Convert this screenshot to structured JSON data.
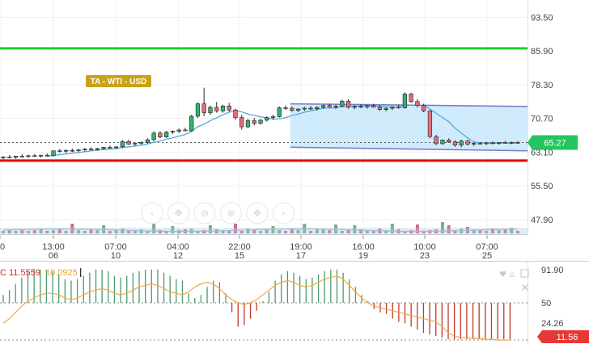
{
  "chart_data": [
    {
      "type": "candlestick",
      "y_ticks": [
        "93.50",
        "85.90",
        "78.30",
        "70.70",
        "63.10",
        "55.50",
        "47.90"
      ],
      "x_ticks": [
        {
          "time": "0",
          "date": ""
        },
        {
          "time": "13:00",
          "date": "06"
        },
        {
          "time": "07:00",
          "date": "10"
        },
        {
          "time": "04:00",
          "date": "12"
        },
        {
          "time": "22:00",
          "date": "15"
        },
        {
          "time": "19:00",
          "date": "17"
        },
        {
          "time": "16:00",
          "date": "19"
        },
        {
          "time": "10:00",
          "date": "23"
        },
        {
          "time": "07:00",
          "date": "25"
        }
      ],
      "ylim": [
        44.6,
        97.4
      ],
      "resistance_level": 86.5,
      "support_level": 61.2,
      "current_price": 65.27,
      "current_price_label": "65.27",
      "grid": true,
      "instrument_badge": "TA - WTI - USD",
      "candles": [
        [
          61.8,
          62.2,
          61.5,
          62.0
        ],
        [
          62.0,
          62.4,
          61.7,
          61.9
        ],
        [
          61.9,
          62.3,
          61.6,
          62.2
        ],
        [
          62.2,
          62.6,
          61.9,
          62.1
        ],
        [
          62.1,
          62.5,
          61.8,
          62.3
        ],
        [
          62.3,
          62.7,
          62.0,
          62.2
        ],
        [
          62.2,
          62.5,
          61.9,
          62.4
        ],
        [
          62.4,
          62.8,
          62.1,
          62.3
        ],
        [
          62.3,
          63.5,
          62.1,
          63.4
        ],
        [
          63.4,
          63.8,
          63.0,
          63.3
        ],
        [
          63.3,
          63.7,
          62.9,
          63.5
        ],
        [
          63.5,
          63.9,
          63.1,
          63.4
        ],
        [
          63.4,
          63.8,
          63.1,
          63.6
        ],
        [
          63.6,
          64.0,
          63.3,
          63.8
        ],
        [
          63.8,
          64.2,
          63.5,
          63.7
        ],
        [
          63.7,
          64.1,
          63.4,
          63.9
        ],
        [
          63.9,
          64.3,
          63.6,
          64.2
        ],
        [
          64.2,
          64.6,
          63.9,
          64.1
        ],
        [
          64.1,
          64.4,
          63.8,
          64.3
        ],
        [
          64.3,
          65.8,
          64.0,
          65.5
        ],
        [
          65.5,
          65.9,
          64.7,
          64.9
        ],
        [
          64.9,
          65.3,
          64.5,
          65.1
        ],
        [
          65.1,
          65.5,
          64.8,
          65.3
        ],
        [
          65.3,
          66.2,
          65.0,
          65.9
        ],
        [
          65.9,
          67.8,
          65.6,
          67.4
        ],
        [
          67.4,
          67.8,
          66.2,
          66.5
        ],
        [
          66.5,
          67.9,
          66.3,
          67.6
        ],
        [
          67.6,
          68.0,
          67.2,
          67.8
        ],
        [
          67.8,
          68.4,
          67.4,
          68.1
        ],
        [
          68.1,
          68.6,
          67.8,
          67.9
        ],
        [
          67.9,
          71.5,
          67.7,
          71.2
        ],
        [
          71.2,
          74.3,
          70.8,
          74.0
        ],
        [
          74.0,
          77.6,
          71.2,
          72.0
        ],
        [
          72.0,
          73.6,
          71.5,
          73.2
        ],
        [
          73.2,
          74.4,
          72.0,
          72.4
        ],
        [
          72.4,
          73.8,
          72.0,
          73.5
        ],
        [
          73.5,
          74.2,
          72.2,
          72.6
        ],
        [
          72.6,
          72.9,
          70.4,
          70.9
        ],
        [
          70.9,
          71.5,
          68.2,
          68.8
        ],
        [
          68.8,
          70.6,
          68.5,
          70.2
        ],
        [
          70.2,
          70.8,
          69.1,
          69.6
        ],
        [
          69.6,
          70.6,
          69.3,
          70.3
        ],
        [
          70.3,
          71.2,
          70.0,
          70.9
        ],
        [
          70.9,
          71.5,
          70.4,
          71.1
        ],
        [
          71.1,
          73.4,
          70.9,
          73.1
        ],
        [
          73.1,
          73.6,
          72.6,
          73.0
        ],
        [
          73.0,
          73.4,
          72.2,
          72.5
        ],
        [
          72.5,
          73.0,
          72.1,
          72.8
        ],
        [
          72.8,
          73.3,
          72.4,
          73.0
        ],
        [
          73.0,
          73.5,
          72.6,
          72.9
        ],
        [
          72.9,
          73.4,
          72.5,
          73.2
        ],
        [
          73.2,
          73.8,
          72.9,
          73.6
        ],
        [
          73.6,
          74.0,
          73.1,
          73.3
        ],
        [
          73.3,
          73.7,
          72.8,
          73.5
        ],
        [
          73.5,
          74.9,
          73.2,
          74.6
        ],
        [
          74.6,
          75.0,
          72.9,
          73.2
        ],
        [
          73.2,
          73.7,
          72.8,
          73.4
        ],
        [
          73.4,
          73.9,
          73.0,
          73.3
        ],
        [
          73.3,
          73.8,
          72.9,
          73.6
        ],
        [
          73.6,
          74.0,
          73.1,
          73.2
        ],
        [
          73.2,
          73.7,
          72.4,
          72.7
        ],
        [
          72.7,
          73.2,
          72.3,
          73.0
        ],
        [
          73.0,
          73.5,
          72.6,
          73.3
        ],
        [
          73.3,
          73.8,
          72.9,
          73.1
        ],
        [
          73.1,
          76.6,
          72.9,
          76.2
        ],
        [
          76.2,
          76.5,
          74.2,
          74.5
        ],
        [
          74.5,
          75.0,
          73.2,
          73.6
        ],
        [
          73.6,
          74.0,
          72.1,
          72.4
        ],
        [
          72.4,
          72.6,
          66.2,
          66.6
        ],
        [
          66.6,
          67.0,
          64.7,
          65.0
        ],
        [
          65.0,
          66.0,
          64.8,
          65.8
        ],
        [
          65.8,
          66.2,
          65.2,
          65.4
        ],
        [
          65.4,
          65.8,
          64.3,
          64.7
        ],
        [
          64.7,
          65.9,
          64.2,
          65.6
        ],
        [
          65.6,
          65.9,
          64.6,
          64.9
        ],
        [
          64.9,
          65.3,
          64.5,
          65.1
        ],
        [
          65.1,
          65.4,
          64.8,
          65.0
        ],
        [
          65.0,
          65.4,
          64.7,
          65.2
        ],
        [
          65.2,
          65.5,
          64.9,
          65.1
        ],
        [
          65.1,
          65.4,
          64.8,
          65.3
        ],
        [
          65.3,
          65.6,
          65.0,
          65.2
        ],
        [
          65.2,
          65.5,
          64.9,
          65.3
        ],
        [
          65.3,
          65.6,
          65.0,
          65.27
        ]
      ]
    },
    {
      "type": "histogram-oscillator",
      "legend_prefix": "C",
      "value_1": "11.5559",
      "value_2": "10.0925",
      "y_ticks": [
        "91.90",
        "50",
        "24.26"
      ],
      "current_value_label": "11.56",
      "ylim": [
        0,
        100
      ],
      "midline": 50,
      "line_values": [
        24,
        30,
        38,
        46,
        52,
        56,
        60,
        62,
        62,
        60,
        56,
        54,
        56,
        60,
        64,
        66,
        68,
        66,
        62,
        60,
        62,
        66,
        70,
        72,
        74,
        72,
        68,
        64,
        62,
        60,
        64,
        70,
        74,
        76,
        74,
        68,
        60,
        54,
        50,
        48,
        50,
        54,
        60,
        66,
        72,
        76,
        78,
        76,
        72,
        70,
        72,
        76,
        80,
        82,
        84,
        80,
        72,
        64,
        56,
        50,
        46,
        44,
        42,
        40,
        38,
        36,
        34,
        32,
        30,
        28,
        26,
        20,
        12,
        8,
        6,
        6,
        5,
        5,
        4,
        4,
        3,
        3,
        3
      ],
      "bar_values": [
        60,
        66,
        74,
        82,
        90,
        92,
        92,
        92,
        90,
        86,
        80,
        78,
        80,
        84,
        88,
        92,
        92,
        90,
        84,
        82,
        84,
        88,
        90,
        92,
        92,
        92,
        88,
        84,
        80,
        78,
        62,
        56,
        60,
        70,
        78,
        76,
        62,
        38,
        20,
        22,
        30,
        40,
        52,
        64,
        78,
        86,
        90,
        88,
        84,
        80,
        82,
        86,
        90,
        92,
        92,
        88,
        80,
        70,
        60,
        52,
        42,
        38,
        36,
        30,
        26,
        24,
        20,
        16,
        12,
        10,
        8,
        6,
        4,
        4,
        4,
        4,
        4,
        4,
        4,
        4,
        4,
        4,
        4
      ]
    }
  ]
}
